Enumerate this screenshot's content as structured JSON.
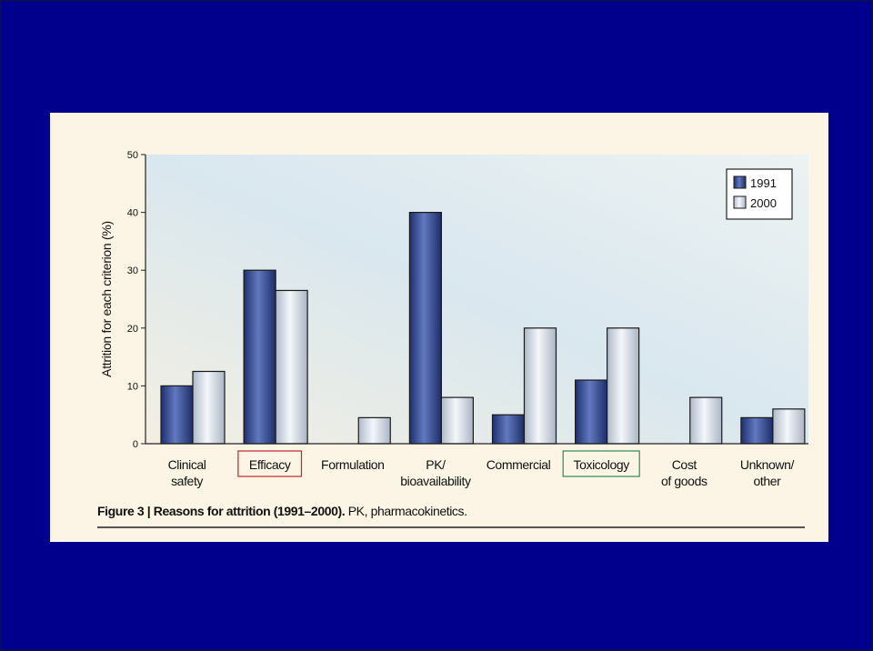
{
  "caption": {
    "figure_label": "Figure 3 | Reasons for attrition (1991–2000).",
    "note": " PK, pharmacokinetics."
  },
  "colors": {
    "slide_background": "#00008c",
    "panel_background": "#fcf4e4",
    "series_1991": "#2e4590",
    "series_2000": "#d6dde6",
    "efficacy_box": "#c8252b",
    "toxicology_box": "#2e8b57"
  },
  "chart_data": {
    "type": "bar",
    "ylabel": "Attrition for each criterion (%)",
    "xlabel": "",
    "ylim": [
      0,
      50
    ],
    "yticks": [
      0,
      10,
      20,
      30,
      40,
      50
    ],
    "grid": false,
    "legend_position": "top-right",
    "categories": [
      [
        "Clinical",
        "safety"
      ],
      [
        "Efficacy"
      ],
      [
        "Formulation"
      ],
      [
        "PK/",
        "bioavailability"
      ],
      [
        "Commercial"
      ],
      [
        "Toxicology"
      ],
      [
        "Cost",
        "of goods"
      ],
      [
        "Unknown/",
        "other"
      ]
    ],
    "highlighted_categories": [
      {
        "category": "Efficacy",
        "box": "red"
      },
      {
        "category": "Toxicology",
        "box": "green"
      }
    ],
    "series": [
      {
        "name": "1991",
        "values": [
          10,
          30,
          0,
          40,
          5,
          11,
          0,
          4.5
        ]
      },
      {
        "name": "2000",
        "values": [
          12.5,
          26.5,
          4.5,
          8,
          20,
          20,
          8,
          6
        ]
      }
    ]
  }
}
